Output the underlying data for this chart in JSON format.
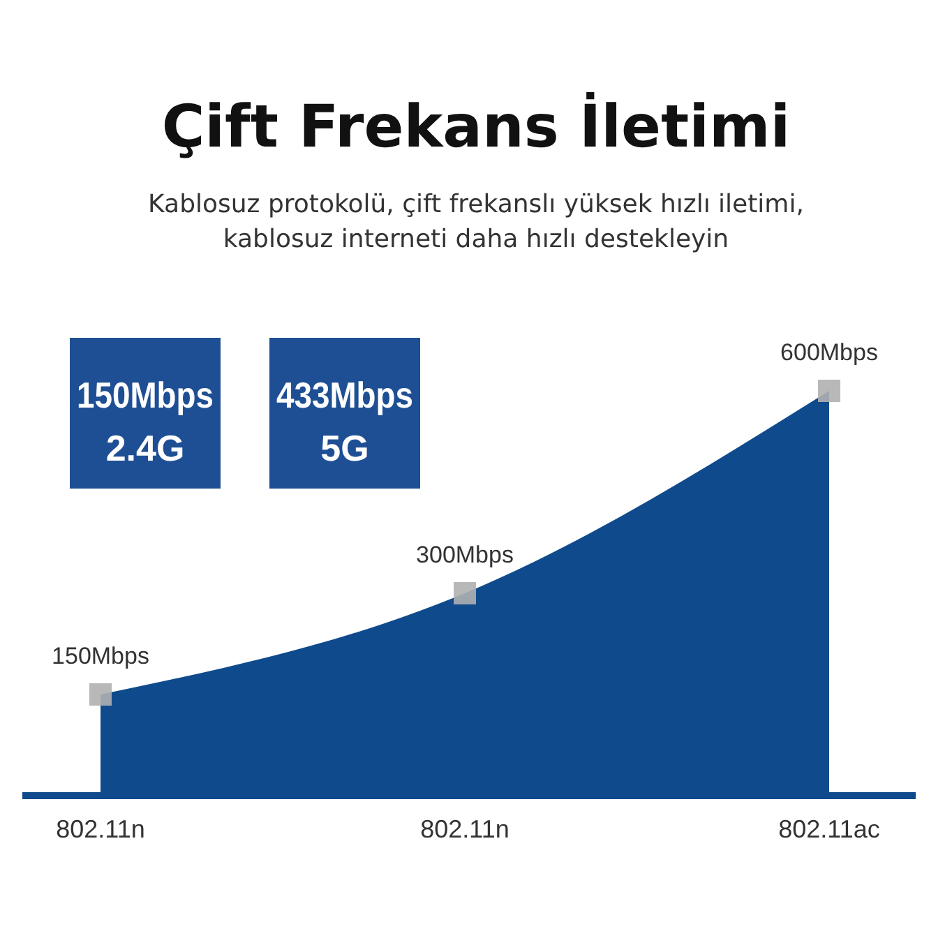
{
  "chart_data": {
    "type": "area",
    "title": "Çift Frekans İletimi",
    "subtitle": "Kablosuz protokolü, çift frekanslı yüksek hızlı iletimi,\nkablosuz interneti daha hızlı destekleyin",
    "categories": [
      "802.11n",
      "802.11n",
      "802.11ac"
    ],
    "series": [
      {
        "color": "#0f4a8c",
        "values": [
          150,
          300,
          600
        ],
        "value_labels": [
          "150Mbps",
          "300Mbps",
          "600Mbps"
        ]
      }
    ],
    "marker": "square",
    "annotations": [
      "150Mbps\n2.4G",
      "433Mbps\n5G"
    ]
  }
}
